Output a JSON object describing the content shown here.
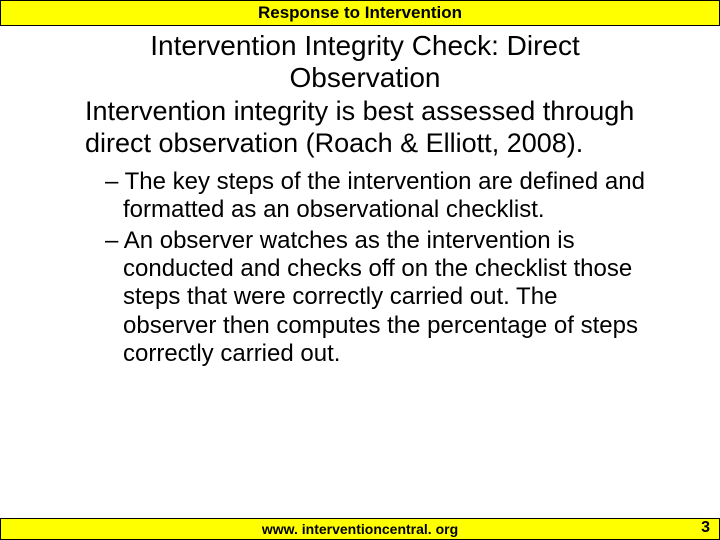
{
  "header": {
    "title": "Response to Intervention",
    "background_color": "#ffff00",
    "border_color": "#000000",
    "font_size": 17,
    "font_weight": "bold"
  },
  "slide": {
    "title": "Intervention Integrity Check: Direct Observation",
    "title_fontsize": 28,
    "body_text": "Intervention integrity is best assessed through direct observation (Roach & Elliott, 2008).",
    "body_fontsize": 27,
    "bullets": [
      "The key steps of the intervention are defined and formatted as an observational checklist.",
      "An observer watches as the intervention is conducted and checks off on the checklist those steps that were correctly carried out. The observer then computes the percentage of steps correctly carried out."
    ],
    "bullet_fontsize": 24,
    "bullet_marker": "– "
  },
  "footer": {
    "url": "www. interventioncentral. org",
    "background_color": "#ffff00",
    "border_color": "#000000",
    "font_size": 14,
    "font_weight": "bold"
  },
  "page_number": "3",
  "background_color": "#ffffff"
}
